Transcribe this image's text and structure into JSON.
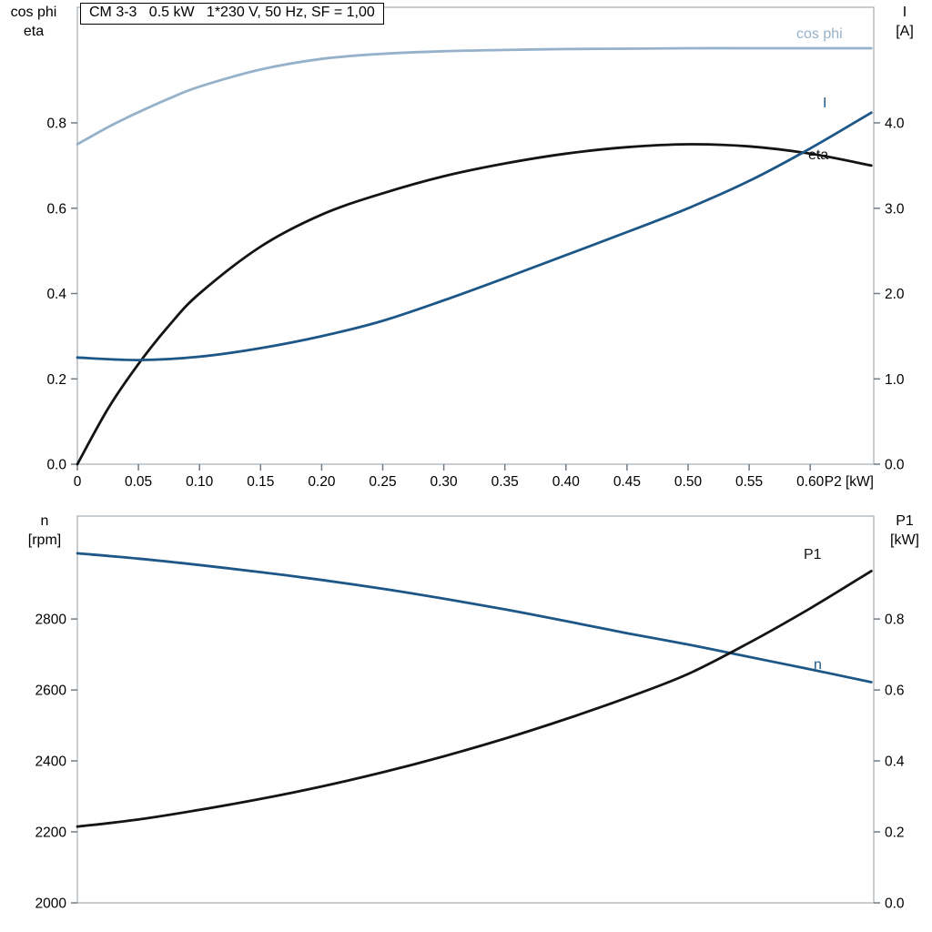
{
  "title_box": "CM 3-3   0.5 kW   1*230 V, 50 Hz, SF = 1,00",
  "colors": {
    "light_blue": "#96b1ca",
    "dark_blue": "#1d5787",
    "black": "#141414",
    "frame": "#a4adb5",
    "tick": "#707b86"
  },
  "chart_data": [
    {
      "type": "line",
      "title": "CM 3-3 0.5 kW 1*230 V, 50 Hz, SF = 1,00",
      "x_range": [
        0,
        0.652
      ],
      "x_ticks": [
        0,
        0.05,
        0.1,
        0.15,
        0.2,
        0.25,
        0.3,
        0.35,
        0.4,
        0.45,
        0.5,
        0.55,
        0.6
      ],
      "x_tick_labels": [
        "0",
        "0.05",
        "0.10",
        "0.15",
        "0.20",
        "0.25",
        "0.30",
        "0.35",
        "0.40",
        "0.45",
        "0.50",
        "0.55",
        "0.60"
      ],
      "x_end_label": "P2 [kW]",
      "left_axis": {
        "title_lines": [
          "cos phi",
          "eta"
        ],
        "range": [
          0,
          1.071
        ],
        "ticks": [
          0,
          0.2,
          0.4,
          0.6,
          0.8
        ],
        "tick_labels": [
          "0.0",
          "0.2",
          "0.4",
          "0.6",
          "0.8"
        ]
      },
      "right_axis": {
        "title_lines": [
          "I",
          "[A]"
        ],
        "range": [
          0,
          5.355
        ],
        "ticks": [
          0,
          1,
          2,
          3,
          4
        ],
        "tick_labels": [
          "0.0",
          "1.0",
          "2.0",
          "3.0",
          "4.0"
        ]
      },
      "series": [
        {
          "name": "cos phi",
          "label": "cos phi",
          "axis": "left",
          "color": "light_blue",
          "x": [
            0,
            0.025,
            0.05,
            0.075,
            0.1,
            0.15,
            0.2,
            0.25,
            0.3,
            0.35,
            0.4,
            0.45,
            0.5,
            0.55,
            0.6,
            0.65
          ],
          "y": [
            0.75,
            0.79,
            0.825,
            0.857,
            0.885,
            0.925,
            0.95,
            0.962,
            0.968,
            0.971,
            0.973,
            0.974,
            0.975,
            0.975,
            0.975,
            0.975
          ]
        },
        {
          "name": "eta",
          "label": "eta",
          "axis": "left",
          "color": "black",
          "x": [
            0,
            0.025,
            0.05,
            0.075,
            0.1,
            0.15,
            0.2,
            0.25,
            0.3,
            0.35,
            0.4,
            0.45,
            0.5,
            0.55,
            0.6,
            0.65
          ],
          "y": [
            0,
            0.13,
            0.235,
            0.325,
            0.4,
            0.51,
            0.585,
            0.635,
            0.675,
            0.705,
            0.728,
            0.743,
            0.75,
            0.745,
            0.728,
            0.7
          ]
        },
        {
          "name": "I",
          "label": "I",
          "axis": "right",
          "color": "dark_blue",
          "x": [
            0,
            0.05,
            0.1,
            0.15,
            0.2,
            0.25,
            0.3,
            0.35,
            0.4,
            0.45,
            0.5,
            0.55,
            0.6,
            0.65
          ],
          "y": [
            1.25,
            1.22,
            1.26,
            1.36,
            1.5,
            1.68,
            1.92,
            2.18,
            2.45,
            2.72,
            3.0,
            3.32,
            3.7,
            4.12
          ]
        }
      ]
    },
    {
      "type": "line",
      "title": "",
      "x_range": [
        0,
        0.652
      ],
      "x_ticks": [],
      "x_tick_labels": [],
      "x_end_label": "",
      "left_axis": {
        "title_lines": [
          "n",
          "[rpm]"
        ],
        "range": [
          2000,
          3090
        ],
        "ticks": [
          2000,
          2200,
          2400,
          2600,
          2800
        ],
        "tick_labels": [
          "2000",
          "2200",
          "2400",
          "2600",
          "2800"
        ]
      },
      "right_axis": {
        "title_lines": [
          "P1",
          "[kW]"
        ],
        "range": [
          0,
          1.09
        ],
        "ticks": [
          0,
          0.2,
          0.4,
          0.6,
          0.8
        ],
        "tick_labels": [
          "0.0",
          "0.2",
          "0.4",
          "0.6",
          "0.8"
        ]
      },
      "series": [
        {
          "name": "n",
          "label": "n",
          "axis": "left",
          "color": "dark_blue",
          "x": [
            0,
            0.05,
            0.1,
            0.15,
            0.2,
            0.25,
            0.3,
            0.35,
            0.4,
            0.45,
            0.5,
            0.55,
            0.6,
            0.65
          ],
          "y": [
            2985,
            2970,
            2952,
            2932,
            2910,
            2885,
            2857,
            2827,
            2794,
            2760,
            2728,
            2693,
            2658,
            2622
          ]
        },
        {
          "name": "P1",
          "label": "P1",
          "axis": "right",
          "color": "black",
          "x": [
            0,
            0.05,
            0.1,
            0.15,
            0.2,
            0.25,
            0.3,
            0.35,
            0.4,
            0.45,
            0.5,
            0.55,
            0.6,
            0.65
          ],
          "y": [
            0.215,
            0.235,
            0.262,
            0.293,
            0.328,
            0.368,
            0.413,
            0.463,
            0.518,
            0.578,
            0.645,
            0.733,
            0.83,
            0.935
          ]
        }
      ]
    }
  ]
}
